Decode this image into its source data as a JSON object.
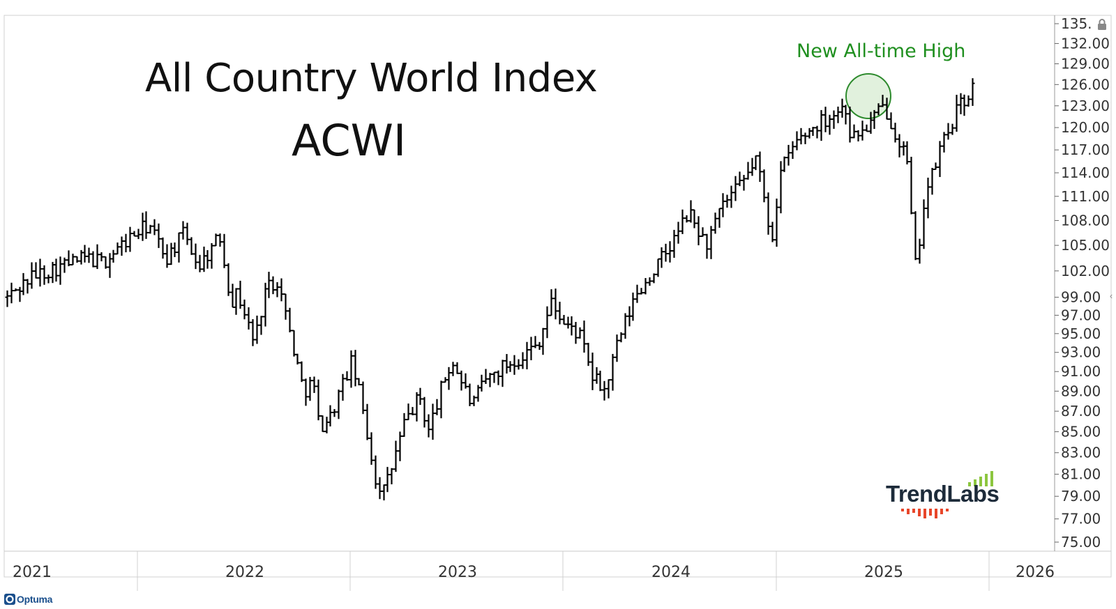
{
  "chart_data": {
    "type": "line",
    "title": "All Country World Index",
    "subtitle": "ACWI",
    "x_tick_labels": [
      "2021",
      "2022",
      "2023",
      "2024",
      "2025",
      "2026"
    ],
    "y_tick_labels": [
      "75.00",
      "77.00",
      "79.00",
      "81.00",
      "83.00",
      "85.00",
      "87.00",
      "89.00",
      "91.00",
      "93.00",
      "95.00",
      "97.00",
      "99.00",
      "102.00",
      "105.00",
      "108.00",
      "111.00",
      "114.00",
      "117.00",
      "120.00",
      "123.00",
      "126.00",
      "129.00",
      "132.00",
      "135."
    ],
    "y_scale": "log",
    "ylim": [
      75,
      135
    ],
    "grid": false,
    "annotation": "New All-time High",
    "series": [
      {
        "values_by_date": [
          [
            "2021-01-01",
            99.0
          ],
          [
            "2021-02-15",
            101.5
          ],
          [
            "2021-04-01",
            102.5
          ],
          [
            "2021-05-15",
            103.5
          ],
          [
            "2021-06-15",
            103.0
          ],
          [
            "2021-08-01",
            106.0
          ],
          [
            "2021-09-01",
            107.5
          ],
          [
            "2021-10-01",
            103.5
          ],
          [
            "2021-11-01",
            106.5
          ],
          [
            "2021-11-25",
            102.5
          ],
          [
            "2022-01-01",
            106.0
          ],
          [
            "2022-01-20",
            98.5
          ],
          [
            "2022-02-01",
            99.5
          ],
          [
            "2022-03-01",
            94.0
          ],
          [
            "2022-03-20",
            100.0
          ],
          [
            "2022-04-10",
            101.0
          ],
          [
            "2022-05-05",
            94.0
          ],
          [
            "2022-05-25",
            89.0
          ],
          [
            "2022-06-10",
            90.0
          ],
          [
            "2022-06-20",
            85.5
          ],
          [
            "2022-07-10",
            86.5
          ],
          [
            "2022-08-15",
            92.0
          ],
          [
            "2022-09-01",
            88.0
          ],
          [
            "2022-09-25",
            80.5
          ],
          [
            "2022-10-10",
            79.5
          ],
          [
            "2022-10-20",
            81.0
          ],
          [
            "2022-11-15",
            86.0
          ],
          [
            "2022-12-10",
            88.5
          ],
          [
            "2022-12-25",
            85.0
          ],
          [
            "2023-01-20",
            90.0
          ],
          [
            "2023-02-05",
            92.0
          ],
          [
            "2023-03-10",
            87.5
          ],
          [
            "2023-04-01",
            90.0
          ],
          [
            "2023-05-01",
            91.5
          ],
          [
            "2023-06-01",
            92.5
          ],
          [
            "2023-07-01",
            94.0
          ],
          [
            "2023-07-25",
            98.5
          ],
          [
            "2023-08-15",
            96.0
          ],
          [
            "2023-09-10",
            95.0
          ],
          [
            "2023-10-01",
            90.5
          ],
          [
            "2023-10-25",
            89.0
          ],
          [
            "2023-11-15",
            94.0
          ],
          [
            "2023-12-15",
            99.0
          ],
          [
            "2024-01-15",
            102.0
          ],
          [
            "2024-02-15",
            105.0
          ],
          [
            "2024-03-15",
            109.0
          ],
          [
            "2024-04-15",
            105.0
          ],
          [
            "2024-05-15",
            110.0
          ],
          [
            "2024-06-15",
            112.5
          ],
          [
            "2024-07-10",
            116.0
          ],
          [
            "2024-07-25",
            110.0
          ],
          [
            "2024-08-05",
            105.5
          ],
          [
            "2024-08-20",
            114.0
          ],
          [
            "2024-09-15",
            118.0
          ],
          [
            "2024-10-15",
            120.0
          ],
          [
            "2024-11-10",
            121.5
          ],
          [
            "2024-12-10",
            123.0
          ],
          [
            "2024-12-20",
            118.5
          ],
          [
            "2025-01-15",
            120.0
          ],
          [
            "2025-02-15",
            123.0
          ],
          [
            "2025-03-05",
            119.5
          ],
          [
            "2025-03-25",
            116.0
          ],
          [
            "2025-04-05",
            106.0
          ],
          [
            "2025-04-10",
            102.0
          ],
          [
            "2025-04-25",
            111.0
          ],
          [
            "2025-05-10",
            114.0
          ],
          [
            "2025-05-25",
            118.0
          ],
          [
            "2025-06-05",
            119.5
          ],
          [
            "2025-06-20",
            122.5
          ],
          [
            "2025-07-05",
            124.0
          ],
          [
            "2025-07-20",
            126.0
          ]
        ]
      }
    ]
  },
  "brand": {
    "name": "TrendLabs",
    "bar_green": "#8cc63f",
    "bar_red": "#e8462a",
    "text_color": "#1d2b3a"
  },
  "footer": {
    "logo_text": "Optuma"
  },
  "colors": {
    "price_bar": "#000000",
    "annotation": "#1f8f1f",
    "circle_fill": "#d9eed5",
    "circle_stroke": "#2e8b2e",
    "axis": "#555555"
  },
  "icons": {
    "lock": "lock-icon",
    "collapse": "chevron-left-icon"
  }
}
